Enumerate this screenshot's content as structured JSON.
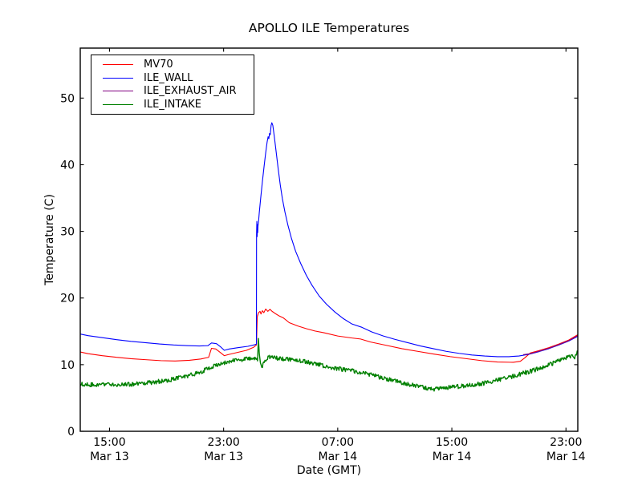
{
  "figure": {
    "title": "APOLLO ILE Temperatures",
    "xlabel": "Date (GMT)",
    "ylabel": "Temperature (C)"
  },
  "axes": {
    "background": "#ffffff",
    "frame_color": "#000000",
    "grid": false,
    "xlim_hours": [
      12.95,
      47.83
    ],
    "ylim": [
      0,
      57.5
    ],
    "x_ticks": [
      {
        "t": 15,
        "time": "15:00",
        "date": "Mar 13"
      },
      {
        "t": 23,
        "time": "23:00",
        "date": "Mar 13"
      },
      {
        "t": 31,
        "time": "07:00",
        "date": "Mar 14"
      },
      {
        "t": 39,
        "time": "15:00",
        "date": "Mar 14"
      },
      {
        "t": 47,
        "time": "23:00",
        "date": "Mar 14"
      }
    ],
    "y_ticks": [
      0,
      10,
      20,
      30,
      40,
      50
    ]
  },
  "legend": {
    "position": "upper left",
    "entries": [
      {
        "label": "MV70",
        "color": "#ff0000"
      },
      {
        "label": "ILE_WALL",
        "color": "#0000ff"
      },
      {
        "label": "ILE_EXHAUST_AIR",
        "color": "#800080"
      },
      {
        "label": "ILE_INTAKE",
        "color": "#008000"
      }
    ]
  },
  "chart_data": {
    "type": "line",
    "title": "APOLLO ILE Temperatures",
    "xlabel": "Date (GMT)",
    "ylabel": "Temperature (C)",
    "x_unit": "hours since Mar 13 00:00 GMT",
    "xlim": [
      12.95,
      47.83
    ],
    "ylim": [
      0,
      57.5
    ],
    "grid": false,
    "legend_position": "upper left",
    "series": [
      {
        "name": "MV70",
        "color": "#ff0000",
        "width": 1.1,
        "noise": 0,
        "points": [
          [
            12.95,
            11.9
          ],
          [
            13.5,
            11.65
          ],
          [
            14.5,
            11.35
          ],
          [
            15.5,
            11.1
          ],
          [
            16.5,
            10.9
          ],
          [
            17.5,
            10.75
          ],
          [
            18.6,
            10.6
          ],
          [
            19.6,
            10.55
          ],
          [
            20.6,
            10.65
          ],
          [
            21.4,
            10.85
          ],
          [
            21.95,
            11.1
          ],
          [
            22.15,
            12.45
          ],
          [
            22.45,
            12.35
          ],
          [
            22.75,
            11.85
          ],
          [
            23.05,
            11.35
          ],
          [
            23.4,
            11.55
          ],
          [
            24.0,
            11.85
          ],
          [
            24.6,
            12.15
          ],
          [
            25.1,
            12.6
          ],
          [
            25.3,
            12.95
          ],
          [
            25.36,
            17.2
          ],
          [
            25.45,
            17.8
          ],
          [
            25.55,
            18.0
          ],
          [
            25.62,
            17.6
          ],
          [
            25.72,
            18.1
          ],
          [
            25.82,
            17.8
          ],
          [
            25.95,
            18.35
          ],
          [
            26.1,
            18.0
          ],
          [
            26.25,
            18.3
          ],
          [
            26.4,
            18.0
          ],
          [
            26.6,
            17.7
          ],
          [
            26.9,
            17.3
          ],
          [
            27.2,
            17.0
          ],
          [
            27.6,
            16.3
          ],
          [
            28.2,
            15.8
          ],
          [
            28.8,
            15.4
          ],
          [
            29.4,
            15.05
          ],
          [
            30.0,
            14.8
          ],
          [
            31.0,
            14.3
          ],
          [
            32.0,
            14.0
          ],
          [
            32.6,
            13.85
          ],
          [
            33.3,
            13.4
          ],
          [
            34.4,
            12.9
          ],
          [
            35.5,
            12.4
          ],
          [
            36.6,
            12.0
          ],
          [
            37.7,
            11.6
          ],
          [
            38.9,
            11.2
          ],
          [
            40.0,
            10.9
          ],
          [
            41.1,
            10.6
          ],
          [
            42.2,
            10.4
          ],
          [
            43.3,
            10.35
          ],
          [
            43.8,
            10.5
          ],
          [
            44.1,
            11.0
          ],
          [
            44.5,
            11.75
          ],
          [
            45.1,
            12.1
          ],
          [
            45.8,
            12.55
          ],
          [
            46.5,
            13.1
          ],
          [
            47.2,
            13.7
          ],
          [
            47.83,
            14.5
          ]
        ]
      },
      {
        "name": "ILE_WALL",
        "color": "#0000ff",
        "width": 1.1,
        "noise": 0,
        "points": [
          [
            12.95,
            14.6
          ],
          [
            13.5,
            14.35
          ],
          [
            14.5,
            14.05
          ],
          [
            15.5,
            13.75
          ],
          [
            16.5,
            13.5
          ],
          [
            17.5,
            13.3
          ],
          [
            18.5,
            13.1
          ],
          [
            19.5,
            12.95
          ],
          [
            20.5,
            12.85
          ],
          [
            21.3,
            12.8
          ],
          [
            21.9,
            12.85
          ],
          [
            22.15,
            13.25
          ],
          [
            22.5,
            13.15
          ],
          [
            22.8,
            12.65
          ],
          [
            23.05,
            12.15
          ],
          [
            23.4,
            12.35
          ],
          [
            24.0,
            12.55
          ],
          [
            24.7,
            12.75
          ],
          [
            25.2,
            13.0
          ],
          [
            25.3,
            13.1
          ],
          [
            25.31,
            29.5
          ],
          [
            25.33,
            31.5
          ],
          [
            25.35,
            29.2
          ],
          [
            25.37,
            31.0
          ],
          [
            25.39,
            29.8
          ],
          [
            25.41,
            30.8
          ],
          [
            25.45,
            31.5
          ],
          [
            25.5,
            32.8
          ],
          [
            25.6,
            35.0
          ],
          [
            25.72,
            37.5
          ],
          [
            25.84,
            39.8
          ],
          [
            25.95,
            41.8
          ],
          [
            26.05,
            43.4
          ],
          [
            26.12,
            44.2
          ],
          [
            26.17,
            43.9
          ],
          [
            26.22,
            44.7
          ],
          [
            26.27,
            44.5
          ],
          [
            26.33,
            45.9
          ],
          [
            26.38,
            46.3
          ],
          [
            26.45,
            45.9
          ],
          [
            26.55,
            44.3
          ],
          [
            26.68,
            42.0
          ],
          [
            26.82,
            39.5
          ],
          [
            26.97,
            37.0
          ],
          [
            27.12,
            34.9
          ],
          [
            27.3,
            32.9
          ],
          [
            27.5,
            31.0
          ],
          [
            27.75,
            29.0
          ],
          [
            28.05,
            27.0
          ],
          [
            28.4,
            25.2
          ],
          [
            28.8,
            23.4
          ],
          [
            29.2,
            21.9
          ],
          [
            29.7,
            20.3
          ],
          [
            30.2,
            19.1
          ],
          [
            30.8,
            17.9
          ],
          [
            31.4,
            16.9
          ],
          [
            32.0,
            16.1
          ],
          [
            32.7,
            15.6
          ],
          [
            33.4,
            14.9
          ],
          [
            34.2,
            14.3
          ],
          [
            35.0,
            13.8
          ],
          [
            35.9,
            13.3
          ],
          [
            36.8,
            12.8
          ],
          [
            37.7,
            12.4
          ],
          [
            38.6,
            12.0
          ],
          [
            39.5,
            11.7
          ],
          [
            40.4,
            11.45
          ],
          [
            41.3,
            11.3
          ],
          [
            42.2,
            11.2
          ],
          [
            43.0,
            11.2
          ],
          [
            43.7,
            11.3
          ],
          [
            44.4,
            11.55
          ],
          [
            45.1,
            11.95
          ],
          [
            45.8,
            12.4
          ],
          [
            46.5,
            12.95
          ],
          [
            47.2,
            13.55
          ],
          [
            47.83,
            14.25
          ]
        ]
      },
      {
        "name": "ILE_EXHAUST_AIR",
        "color": "#800080",
        "width": 1.1,
        "noise": 0,
        "points": [
          [
            44.0,
            11.5
          ],
          [
            44.5,
            11.65
          ],
          [
            45.1,
            12.0
          ],
          [
            45.8,
            12.45
          ],
          [
            46.5,
            13.0
          ],
          [
            47.2,
            13.6
          ],
          [
            47.83,
            14.35
          ]
        ]
      },
      {
        "name": "ILE_INTAKE",
        "color": "#008000",
        "width": 1.4,
        "noise": 0.33,
        "points": [
          [
            12.95,
            7.1
          ],
          [
            13.6,
            7.0
          ],
          [
            14.4,
            6.95
          ],
          [
            15.2,
            7.0
          ],
          [
            16.0,
            7.0
          ],
          [
            16.8,
            7.1
          ],
          [
            17.6,
            7.25
          ],
          [
            18.4,
            7.45
          ],
          [
            19.2,
            7.7
          ],
          [
            20.0,
            8.05
          ],
          [
            20.8,
            8.5
          ],
          [
            21.5,
            9.0
          ],
          [
            22.1,
            9.6
          ],
          [
            22.7,
            10.1
          ],
          [
            23.3,
            10.45
          ],
          [
            24.0,
            10.7
          ],
          [
            24.7,
            10.9
          ],
          [
            25.2,
            10.95
          ],
          [
            25.38,
            10.85
          ],
          [
            25.44,
            14.1
          ],
          [
            25.5,
            11.5
          ],
          [
            25.58,
            10.3
          ],
          [
            25.68,
            9.6
          ],
          [
            25.8,
            10.2
          ],
          [
            25.95,
            10.8
          ],
          [
            26.2,
            11.1
          ],
          [
            26.5,
            11.0
          ],
          [
            26.9,
            10.95
          ],
          [
            27.3,
            10.85
          ],
          [
            27.8,
            10.75
          ],
          [
            28.3,
            10.6
          ],
          [
            28.9,
            10.4
          ],
          [
            29.5,
            10.1
          ],
          [
            30.1,
            9.8
          ],
          [
            30.8,
            9.5
          ],
          [
            31.5,
            9.25
          ],
          [
            32.2,
            9.0
          ],
          [
            33.0,
            8.6
          ],
          [
            33.8,
            8.2
          ],
          [
            34.6,
            7.8
          ],
          [
            35.3,
            7.4
          ],
          [
            36.0,
            7.0
          ],
          [
            36.7,
            6.7
          ],
          [
            37.3,
            6.45
          ],
          [
            37.8,
            6.35
          ],
          [
            38.4,
            6.5
          ],
          [
            39.2,
            6.65
          ],
          [
            40.0,
            6.85
          ],
          [
            40.8,
            7.05
          ],
          [
            41.6,
            7.35
          ],
          [
            42.4,
            7.75
          ],
          [
            43.2,
            8.2
          ],
          [
            44.0,
            8.7
          ],
          [
            44.8,
            9.2
          ],
          [
            45.6,
            9.8
          ],
          [
            46.4,
            10.5
          ],
          [
            47.0,
            11.05
          ],
          [
            47.4,
            11.3
          ],
          [
            47.65,
            11.15
          ],
          [
            47.83,
            11.95
          ]
        ]
      }
    ]
  }
}
